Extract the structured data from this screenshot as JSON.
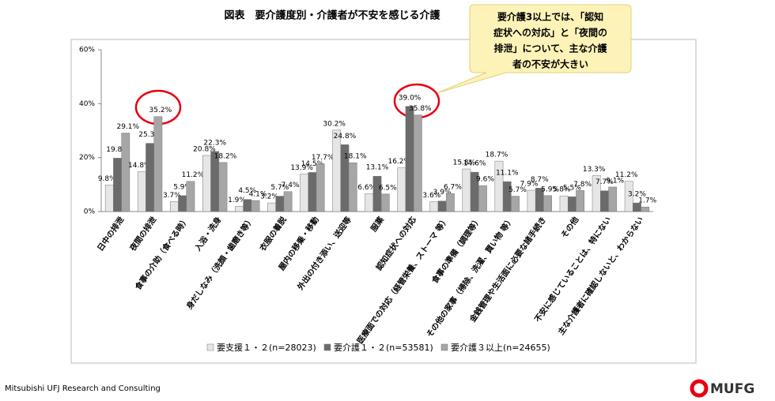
{
  "chart_data": {
    "type": "bar",
    "title": "図表　要介護度別・介護者が不安を感じる介護",
    "annotation_lines": [
      "要介護3以上では、「認知",
      "症状への対応」と「夜間の",
      "排泄」について、主な介護",
      "者の不安が大きい"
    ],
    "categories": [
      "日中の排泄",
      "夜間の排泄",
      "食事の介助（食べる時）",
      "入浴・洗身",
      "身だしなみ（洗顔・歯磨き等）",
      "衣服の着脱",
      "屋内の移乗・移動",
      "外出の付き添い、送迎等",
      "服薬",
      "認知症状への対応",
      "医療面での対応（経管栄養、ストーマ 等）",
      "食事の準備（調理等）",
      "その他の家事（掃除、洗濯、買い物 等）",
      "金銭管理や生活面に必要な諸手続き",
      "その他",
      "不安に感じていることは、特にない",
      "主な介護者に確認しないと、わからない"
    ],
    "series": [
      {
        "name": "要支援１・２(n=28023)",
        "color": "#e6e6e6",
        "values": [
          9.8,
          14.8,
          3.7,
          20.8,
          1.9,
          3.2,
          13.9,
          30.2,
          6.6,
          16.2,
          3.6,
          15.8,
          18.7,
          7.9,
          5.8,
          13.3,
          11.2
        ],
        "value_labels": [
          "9.8%",
          "14.8%",
          "3.7%",
          "20.8%",
          "1.9%",
          "3.2%",
          "13.9%",
          "30.2%",
          "6.6%",
          "16.2%",
          "3.6%",
          "15.8%",
          "18.7%",
          "7.9%",
          "5.8%",
          "13.3%",
          "11.2%"
        ]
      },
      {
        "name": "要介護１・２(n=53581)",
        "color": "#6b6b6b",
        "values": [
          19.8,
          25.3,
          5.9,
          22.3,
          4.5,
          5.7,
          14.5,
          24.8,
          13.1,
          39.0,
          3.9,
          14.6,
          11.1,
          8.7,
          5.5,
          7.7,
          3.2
        ],
        "value_labels": [
          "19.8%",
          "25.3%",
          "5.9%",
          "22.3%",
          "4.5%",
          "5.7%",
          "14.5%",
          "24.8%",
          "13.1%",
          "39.0%",
          "3.9%",
          "14.6%",
          "11.1%",
          "8.7%",
          "5.5%",
          "7.7%",
          "3.2%"
        ]
      },
      {
        "name": "要介護３以上(n=24655)",
        "color": "#a6a6a6",
        "values": [
          29.1,
          35.2,
          11.2,
          18.2,
          4.1,
          7.4,
          17.7,
          18.1,
          6.5,
          35.8,
          6.7,
          9.6,
          5.7,
          5.9,
          7.8,
          9.1,
          1.7
        ],
        "value_labels": [
          "29.1%",
          "35.2%",
          "11.2%",
          "18.2%",
          "4.1%",
          "7.4%",
          "17.7%",
          "18.1%",
          "6.5%",
          "35.8%",
          "6.7%",
          "9.6%",
          "5.7%",
          "5.9%",
          "7.8%",
          "9.1%",
          "1.7%"
        ]
      }
    ],
    "ylim": [
      0,
      60
    ],
    "yticks": [
      {
        "value": 0,
        "label": "0%"
      },
      {
        "value": 20,
        "label": "20%"
      },
      {
        "value": 40,
        "label": "40%"
      },
      {
        "value": 60,
        "label": "60%"
      }
    ],
    "grid": false
  },
  "footer": {
    "source": "Mitsubishi UFJ Research and Consulting",
    "logo": "MUFG"
  }
}
